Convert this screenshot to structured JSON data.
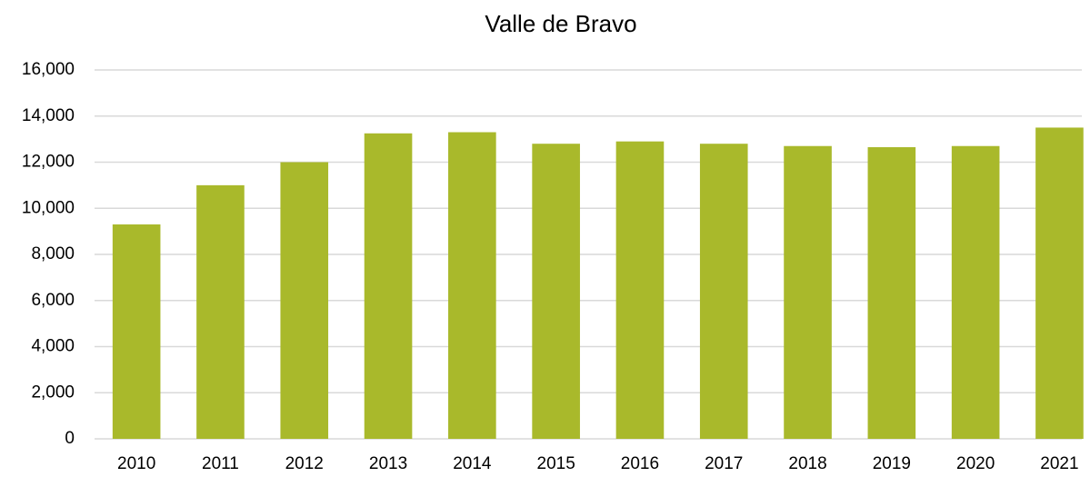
{
  "chart_data": {
    "type": "bar",
    "title": "Valle de Bravo",
    "categories": [
      "2010",
      "2011",
      "2012",
      "2013",
      "2014",
      "2015",
      "2016",
      "2017",
      "2018",
      "2019",
      "2020",
      "2021"
    ],
    "values": [
      9300,
      11000,
      12000,
      13250,
      13300,
      12800,
      12900,
      12800,
      12700,
      12650,
      12700,
      13500
    ],
    "color": "#a9b92b",
    "ylim": [
      0,
      16000
    ],
    "yticks": [
      0,
      {
        "value": 2000,
        "label": "2,000"
      },
      {
        "value": 4000,
        "label": "4,000"
      },
      {
        "value": 6000,
        "label": "6,000"
      },
      {
        "value": 8000,
        "label": "8,000"
      },
      {
        "value": 10000,
        "label": "10,000"
      },
      {
        "value": 12000,
        "label": "12,000"
      },
      {
        "value": 14000,
        "label": "14,000"
      },
      {
        "value": 16000,
        "label": "16,000"
      }
    ],
    "grid": true
  }
}
